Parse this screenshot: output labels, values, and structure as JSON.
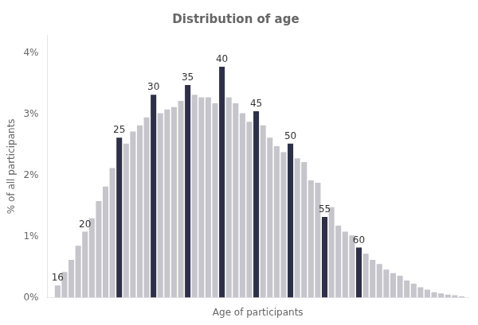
{
  "chart_data": {
    "type": "bar",
    "title": "Distribution of age",
    "xlabel": "Age of participants",
    "ylabel": "% of all participants",
    "x": [
      16,
      17,
      18,
      19,
      20,
      21,
      22,
      23,
      24,
      25,
      26,
      27,
      28,
      29,
      30,
      31,
      32,
      33,
      34,
      35,
      36,
      37,
      38,
      39,
      40,
      41,
      42,
      43,
      44,
      45,
      46,
      47,
      48,
      49,
      50,
      51,
      52,
      53,
      54,
      55,
      56,
      57,
      58,
      59,
      60,
      61,
      62,
      63,
      64,
      65,
      66,
      67,
      68,
      69,
      70,
      71,
      72,
      73,
      74,
      75
    ],
    "values": [
      0.2,
      0.42,
      0.62,
      0.85,
      1.08,
      1.3,
      1.58,
      1.82,
      2.12,
      2.62,
      2.52,
      2.72,
      2.82,
      2.95,
      3.32,
      3.02,
      3.08,
      3.12,
      3.22,
      3.48,
      3.32,
      3.28,
      3.28,
      3.18,
      3.78,
      3.28,
      3.18,
      3.02,
      2.88,
      3.05,
      2.82,
      2.62,
      2.48,
      2.38,
      2.52,
      2.28,
      2.22,
      1.92,
      1.88,
      1.32,
      1.48,
      1.18,
      1.08,
      1.02,
      0.82,
      0.72,
      0.62,
      0.55,
      0.46,
      0.4,
      0.36,
      0.28,
      0.23,
      0.17,
      0.13,
      0.09,
      0.07,
      0.05,
      0.04,
      0.02
    ],
    "colors": [
      "#c5c5cb",
      "#c5c5cb",
      "#c5c5cb",
      "#c5c5cb",
      "#c5c5cb",
      "#c5c5cb",
      "#c5c5cb",
      "#c5c5cb",
      "#c5c5cb",
      "#2d3047",
      "#c5c5cb",
      "#c5c5cb",
      "#c5c5cb",
      "#c5c5cb",
      "#2d3047",
      "#c5c5cb",
      "#c5c5cb",
      "#c5c5cb",
      "#c5c5cb",
      "#2d3047",
      "#c5c5cb",
      "#c5c5cb",
      "#c5c5cb",
      "#c5c5cb",
      "#2d3047",
      "#c5c5cb",
      "#c5c5cb",
      "#c5c5cb",
      "#c5c5cb",
      "#2d3047",
      "#c5c5cb",
      "#c5c5cb",
      "#c5c5cb",
      "#c5c5cb",
      "#2d3047",
      "#c5c5cb",
      "#c5c5cb",
      "#c5c5cb",
      "#c5c5cb",
      "#2d3047",
      "#c5c5cb",
      "#c5c5cb",
      "#c5c5cb",
      "#c5c5cb",
      "#2d3047",
      "#c5c5cb",
      "#c5c5cb",
      "#c5c5cb",
      "#c5c5cb",
      "#c5c5cb",
      "#c5c5cb",
      "#c5c5cb",
      "#c5c5cb",
      "#c5c5cb",
      "#c5c5cb",
      "#c5c5cb",
      "#c5c5cb",
      "#c5c5cb",
      "#c5c5cb",
      "#c5c5cb"
    ],
    "xlim": [
      14.5,
      76
    ],
    "xticks": [],
    "ylim": [
      0,
      4.3
    ],
    "yticks": [
      {
        "value": 0,
        "label": "0%"
      },
      {
        "value": 1,
        "label": "1%"
      },
      {
        "value": 2,
        "label": "2%"
      },
      {
        "value": 3,
        "label": "3%"
      },
      {
        "value": 4,
        "label": "4%"
      }
    ],
    "grid": false,
    "tick_labels": "y",
    "annotations": [
      {
        "x": 16,
        "y": 0.2,
        "text": "16"
      },
      {
        "x": 20,
        "y": 1.08,
        "text": "20"
      },
      {
        "x": 25,
        "y": 2.62,
        "text": "25"
      },
      {
        "x": 30,
        "y": 3.32,
        "text": "30"
      },
      {
        "x": 35,
        "y": 3.48,
        "text": "35"
      },
      {
        "x": 40,
        "y": 3.78,
        "text": "40"
      },
      {
        "x": 45,
        "y": 3.05,
        "text": "45"
      },
      {
        "x": 50,
        "y": 2.52,
        "text": "50"
      },
      {
        "x": 55,
        "y": 1.32,
        "text": "55"
      },
      {
        "x": 60,
        "y": 0.82,
        "text": "60"
      }
    ]
  }
}
